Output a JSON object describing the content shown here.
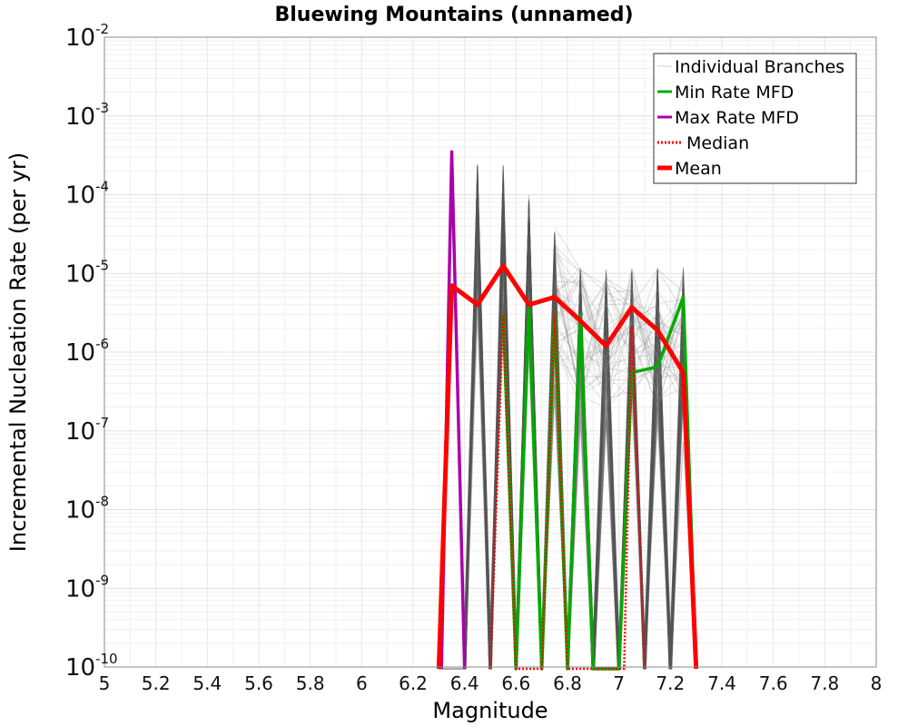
{
  "chart_data": {
    "type": "line",
    "title": "Bluewing Mountains (unnamed)",
    "xlabel": "Magnitude",
    "ylabel": "Incremental Nucleation Rate (per yr)",
    "xlim": [
      5,
      8
    ],
    "ylim": [
      1e-10,
      0.01
    ],
    "y_scale": "log",
    "grid": true,
    "x_ticks": [
      "5",
      "5.2",
      "5.4",
      "5.6",
      "5.8",
      "6",
      "6.2",
      "6.4",
      "6.6",
      "6.8",
      "7",
      "7.2",
      "7.4",
      "7.6",
      "7.8",
      "8"
    ],
    "y_ticks": [
      {
        "base": "10",
        "exp": "-10"
      },
      {
        "base": "10",
        "exp": "-9"
      },
      {
        "base": "10",
        "exp": "-8"
      },
      {
        "base": "10",
        "exp": "-7"
      },
      {
        "base": "10",
        "exp": "-6"
      },
      {
        "base": "10",
        "exp": "-5"
      },
      {
        "base": "10",
        "exp": "-4"
      },
      {
        "base": "10",
        "exp": "-3"
      },
      {
        "base": "10",
        "exp": "-2"
      }
    ],
    "legend_position": "top-right",
    "series": [
      {
        "name": "Individual Branches",
        "color": "#555555",
        "style": "thin-gray",
        "peaks": [
          {
            "x": 6.45,
            "y": 0.00025
          },
          {
            "x": 6.55,
            "y": 0.00025
          },
          {
            "x": 6.65,
            "y": 0.0001
          },
          {
            "x": 6.75,
            "y": 4e-05
          },
          {
            "x": 6.85,
            "y": 1.2e-05
          },
          {
            "x": 6.95,
            "y": 1.2e-05
          },
          {
            "x": 7.05,
            "y": 1.2e-05
          },
          {
            "x": 7.15,
            "y": 1.2e-05
          },
          {
            "x": 7.25,
            "y": 1.2e-05
          }
        ]
      },
      {
        "name": "Min Rate MFD",
        "color": "#00aa00",
        "style": "solid",
        "x": [
          6.55,
          6.6,
          6.65,
          6.7,
          6.75,
          6.8,
          6.85,
          6.9,
          7.0,
          7.05,
          7.15,
          7.25,
          7.3
        ],
        "y": [
          3e-06,
          1e-10,
          4e-06,
          1e-10,
          3e-06,
          1e-10,
          3e-06,
          1e-10,
          1e-10,
          5.5e-07,
          6.5e-07,
          5e-06,
          1e-10
        ]
      },
      {
        "name": "Max Rate MFD",
        "color": "#aa00aa",
        "style": "solid",
        "x": [
          6.31,
          6.35,
          6.4
        ],
        "y": [
          1e-10,
          0.00035,
          1e-10
        ]
      },
      {
        "name": "Median",
        "color": "#ff0000",
        "style": "dotted",
        "x": [
          6.5,
          6.55,
          6.6,
          6.7,
          6.75,
          6.8,
          7.02,
          7.05,
          7.1
        ],
        "y": [
          1e-10,
          3e-06,
          1e-10,
          1e-10,
          3e-06,
          1e-10,
          1e-10,
          2e-06,
          1e-10
        ]
      },
      {
        "name": "Mean",
        "color": "#ff0000",
        "style": "thick",
        "x": [
          6.3,
          6.35,
          6.45,
          6.55,
          6.65,
          6.75,
          6.85,
          6.95,
          7.05,
          7.15,
          7.25,
          7.3
        ],
        "y": [
          1e-10,
          7e-06,
          4e-06,
          1.25e-05,
          4e-06,
          5e-06,
          2.5e-06,
          1.2e-06,
          3.7e-06,
          1.9e-06,
          5.5e-07,
          1e-10
        ]
      }
    ]
  }
}
